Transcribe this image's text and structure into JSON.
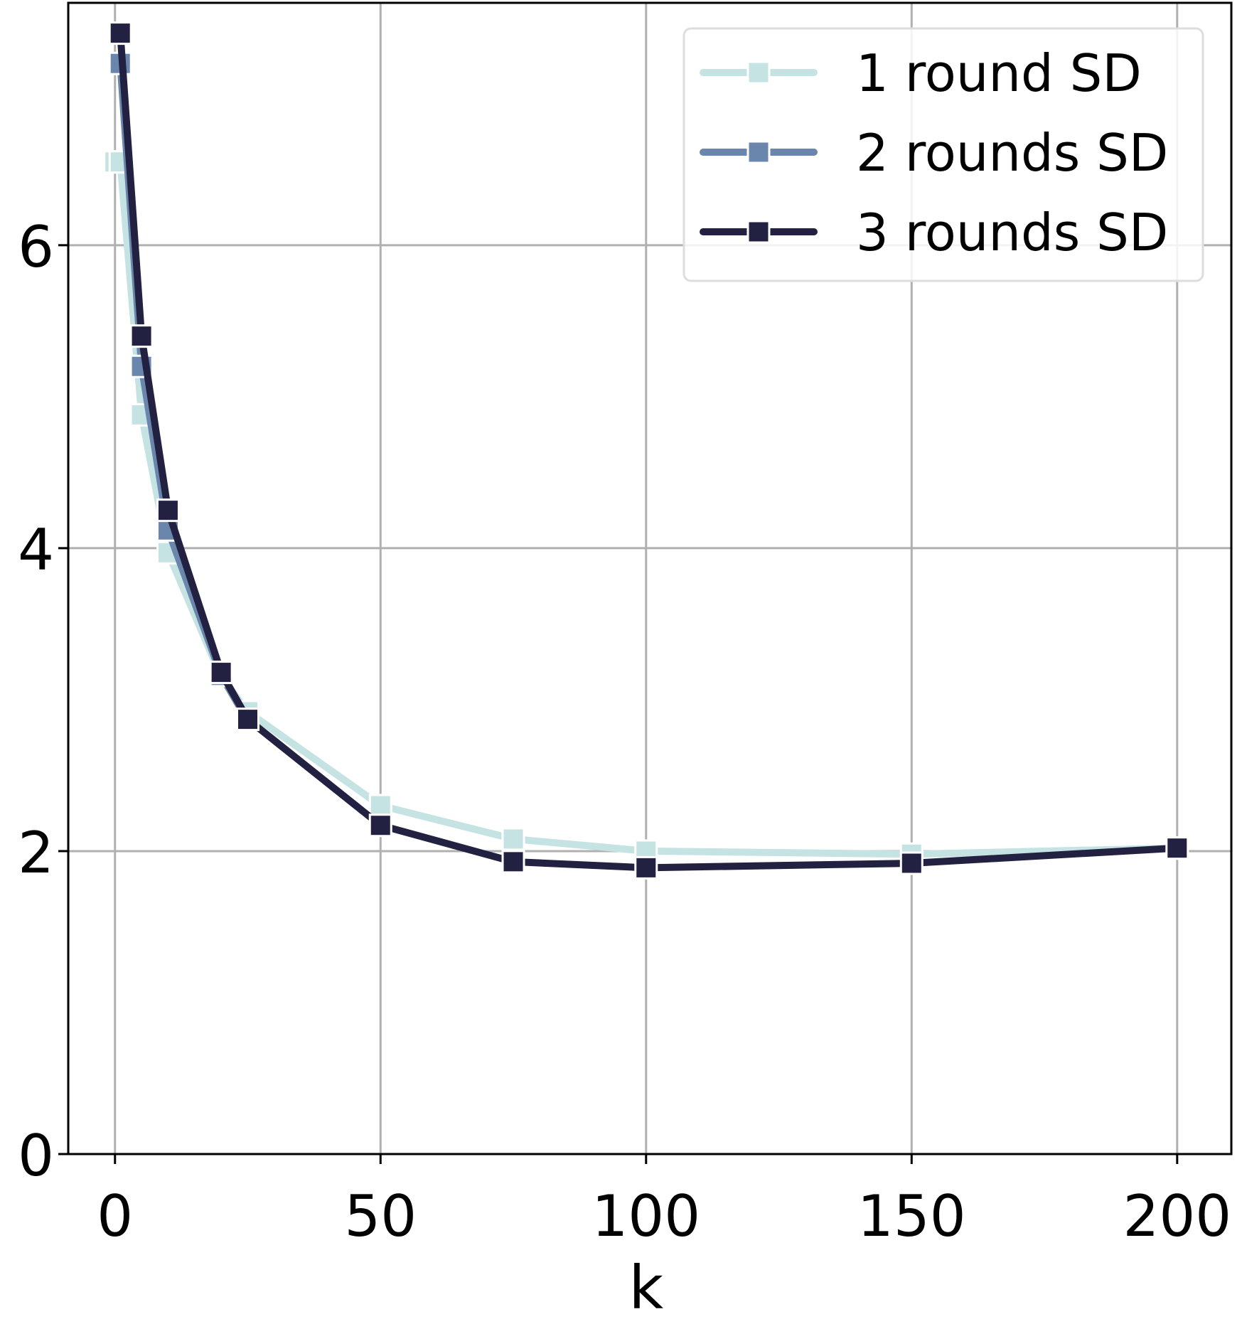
{
  "chart_data": {
    "type": "line",
    "title": "",
    "xlabel": "k",
    "ylabel": "",
    "xlim": [
      -8.8,
      210.2
    ],
    "ylim": [
      0,
      7.6
    ],
    "xticks": [
      0,
      50,
      100,
      150,
      200
    ],
    "yticks": [
      0,
      2,
      4,
      6
    ],
    "xtick_labels": [
      "0",
      "50",
      "100",
      "150",
      "200"
    ],
    "ytick_labels": [
      "0",
      "2",
      "4",
      "6"
    ],
    "grid": true,
    "legend_position": "top-right",
    "marker": "square",
    "series": [
      {
        "name": "1 round SD",
        "color": "#c6e3e3",
        "x": [
          0,
          1,
          5,
          10,
          20,
          25,
          50,
          75,
          100,
          150,
          200
        ],
        "y": [
          6.55,
          6.55,
          4.88,
          3.97,
          3.15,
          2.92,
          2.3,
          2.08,
          2.0,
          1.98,
          2.02
        ]
      },
      {
        "name": "2 rounds SD",
        "color": "#6b86ac",
        "x": [
          1,
          5,
          10,
          20,
          25
        ],
        "y": [
          7.2,
          5.2,
          4.12,
          3.16,
          2.86
        ]
      },
      {
        "name": "3 rounds SD",
        "color": "#222142",
        "x": [
          1,
          5,
          10,
          20,
          25,
          50,
          75,
          100,
          150,
          200
        ],
        "y": [
          7.4,
          5.4,
          4.25,
          3.18,
          2.87,
          2.17,
          1.93,
          1.89,
          1.92,
          2.02
        ]
      }
    ]
  }
}
